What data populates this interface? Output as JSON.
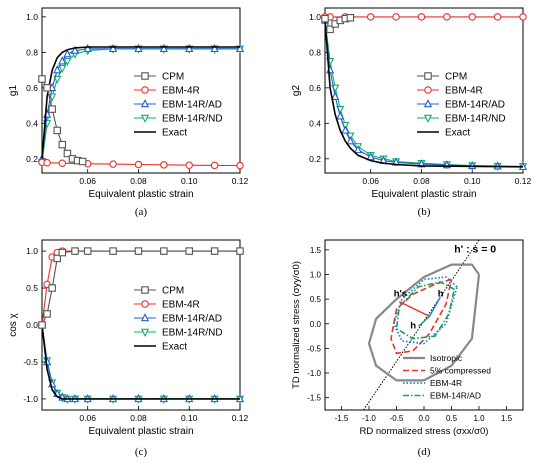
{
  "colors": {
    "CPM": "#555555",
    "EBM-4R": "#e8322b",
    "EBM-14R/AD": "#1f5fd6",
    "EBM-14R/ND": "#13b06a",
    "Exact": "#000000",
    "isotropic": "#888888",
    "compressed": "#e8322b",
    "ebm4r": "#1a7fd8",
    "ebm14rad": "#13a060"
  },
  "chart_data": [
    {
      "id": "a",
      "type": "line",
      "panel_label": "(a)",
      "xlabel": "Equivalent plastic strain",
      "ylabel": "g1",
      "xlim": [
        0.042,
        0.12
      ],
      "ylim": [
        0.12,
        1.05
      ],
      "xticks": [
        0.06,
        0.08,
        0.1,
        0.12
      ],
      "xtick_labels": [
        "0.06",
        "0.08",
        "0.10",
        "0.12"
      ],
      "yticks": [
        0.2,
        0.4,
        0.6,
        0.8,
        1.0
      ],
      "ytick_labels": [
        "0.2",
        "0.4",
        "0.6",
        "0.8",
        "1.0"
      ],
      "legend": "center-right",
      "series": [
        {
          "name": "CPM",
          "marker": "square",
          "x": [
            0.042,
            0.044,
            0.046,
            0.048,
            0.05,
            0.052,
            0.054,
            0.056,
            0.058
          ],
          "y": [
            0.65,
            0.6,
            0.48,
            0.36,
            0.28,
            0.23,
            0.2,
            0.19,
            0.185
          ]
        },
        {
          "name": "EBM-4R",
          "marker": "circle",
          "x": [
            0.042,
            0.044,
            0.05,
            0.06,
            0.07,
            0.08,
            0.09,
            0.1,
            0.11,
            0.12
          ],
          "y": [
            0.18,
            0.178,
            0.175,
            0.172,
            0.17,
            0.168,
            0.166,
            0.164,
            0.163,
            0.162
          ]
        },
        {
          "name": "EBM-14R/AD",
          "marker": "triangle-up",
          "x": [
            0.042,
            0.044,
            0.046,
            0.048,
            0.05,
            0.052,
            0.055,
            0.06,
            0.07,
            0.08,
            0.09,
            0.1,
            0.11,
            0.12
          ],
          "y": [
            0.2,
            0.45,
            0.6,
            0.7,
            0.75,
            0.79,
            0.81,
            0.82,
            0.82,
            0.82,
            0.82,
            0.82,
            0.82,
            0.82
          ]
        },
        {
          "name": "EBM-14R/ND",
          "marker": "triangle-down",
          "x": [
            0.042,
            0.044,
            0.046,
            0.048,
            0.05,
            0.052,
            0.055,
            0.06,
            0.07,
            0.08,
            0.09,
            0.1,
            0.11,
            0.12
          ],
          "y": [
            0.18,
            0.4,
            0.55,
            0.65,
            0.71,
            0.75,
            0.79,
            0.81,
            0.82,
            0.82,
            0.82,
            0.82,
            0.82,
            0.82
          ]
        },
        {
          "name": "Exact",
          "marker": "none",
          "x": [
            0.042,
            0.044,
            0.046,
            0.048,
            0.05,
            0.052,
            0.055,
            0.06,
            0.07,
            0.08,
            0.12
          ],
          "y": [
            0.2,
            0.55,
            0.7,
            0.77,
            0.8,
            0.815,
            0.825,
            0.83,
            0.83,
            0.83,
            0.83
          ]
        }
      ]
    },
    {
      "id": "b",
      "type": "line",
      "panel_label": "(b)",
      "xlabel": "Equivalent plastic strain",
      "ylabel": "g2",
      "xlim": [
        0.042,
        0.12
      ],
      "ylim": [
        0.12,
        1.05
      ],
      "xticks": [
        0.06,
        0.08,
        0.1,
        0.12
      ],
      "xtick_labels": [
        "0.06",
        "0.08",
        "0.10",
        "0.12"
      ],
      "yticks": [
        0.2,
        0.4,
        0.6,
        0.8,
        1.0
      ],
      "ytick_labels": [
        "0.2",
        "0.4",
        "0.6",
        "0.8",
        "1.0"
      ],
      "legend": "center-right",
      "series": [
        {
          "name": "CPM",
          "marker": "square",
          "x": [
            0.042,
            0.044,
            0.046,
            0.048,
            0.05,
            0.052
          ],
          "y": [
            0.99,
            0.93,
            0.96,
            0.98,
            0.99,
            0.995
          ]
        },
        {
          "name": "EBM-4R",
          "marker": "circle",
          "x": [
            0.042,
            0.044,
            0.05,
            0.06,
            0.07,
            0.08,
            0.09,
            0.1,
            0.11,
            0.12
          ],
          "y": [
            1.0,
            1.0,
            1.0,
            1.0,
            1.0,
            1.0,
            1.0,
            1.0,
            1.0,
            1.0
          ]
        },
        {
          "name": "EBM-14R/AD",
          "marker": "triangle-up",
          "x": [
            0.042,
            0.044,
            0.046,
            0.048,
            0.05,
            0.052,
            0.055,
            0.06,
            0.065,
            0.07,
            0.08,
            0.09,
            0.1,
            0.11,
            0.12
          ],
          "y": [
            0.98,
            0.7,
            0.55,
            0.44,
            0.36,
            0.3,
            0.25,
            0.21,
            0.19,
            0.18,
            0.17,
            0.165,
            0.16,
            0.158,
            0.155
          ]
        },
        {
          "name": "EBM-14R/ND",
          "marker": "triangle-down",
          "x": [
            0.042,
            0.044,
            0.046,
            0.048,
            0.05,
            0.052,
            0.055,
            0.06,
            0.065,
            0.07,
            0.08,
            0.09,
            0.1,
            0.11,
            0.12
          ],
          "y": [
            0.98,
            0.75,
            0.6,
            0.48,
            0.39,
            0.33,
            0.27,
            0.22,
            0.2,
            0.185,
            0.175,
            0.168,
            0.162,
            0.159,
            0.157
          ]
        },
        {
          "name": "Exact",
          "marker": "none",
          "x": [
            0.042,
            0.044,
            0.046,
            0.048,
            0.05,
            0.052,
            0.055,
            0.06,
            0.065,
            0.07,
            0.08,
            0.12
          ],
          "y": [
            0.98,
            0.6,
            0.45,
            0.36,
            0.3,
            0.26,
            0.22,
            0.19,
            0.175,
            0.168,
            0.16,
            0.155
          ]
        }
      ]
    },
    {
      "id": "c",
      "type": "line",
      "panel_label": "(c)",
      "xlabel": "Equivalent plastic strain",
      "ylabel": "cos χ",
      "xlim": [
        0.042,
        0.12
      ],
      "ylim": [
        -1.15,
        1.15
      ],
      "xticks": [
        0.06,
        0.08,
        0.1,
        0.12
      ],
      "xtick_labels": [
        "0.06",
        "0.08",
        "0.10",
        "0.12"
      ],
      "yticks": [
        -1.0,
        -0.5,
        0.0,
        0.5,
        1.0
      ],
      "ytick_labels": [
        "-1.0",
        "-0.5",
        "0.0",
        "0.5",
        "1.0"
      ],
      "legend": "center-right",
      "series": [
        {
          "name": "CPM",
          "marker": "square",
          "x": [
            0.042,
            0.044,
            0.046,
            0.048,
            0.05,
            0.055,
            0.06,
            0.07,
            0.08,
            0.09,
            0.1,
            0.11,
            0.12
          ],
          "y": [
            0.0,
            0.15,
            0.5,
            0.9,
            0.98,
            1.0,
            1.0,
            1.0,
            1.0,
            1.0,
            1.0,
            1.0,
            1.0
          ]
        },
        {
          "name": "EBM-4R",
          "marker": "circle",
          "x": [
            0.042,
            0.044,
            0.046,
            0.048,
            0.05,
            0.055,
            0.06,
            0.07,
            0.08,
            0.09,
            0.1,
            0.11,
            0.12
          ],
          "y": [
            0.0,
            0.55,
            0.92,
            0.98,
            1.0,
            1.0,
            1.0,
            1.0,
            1.0,
            1.0,
            1.0,
            1.0,
            1.0
          ]
        },
        {
          "name": "EBM-14R/AD",
          "marker": "triangle-up",
          "x": [
            0.042,
            0.044,
            0.046,
            0.048,
            0.05,
            0.052,
            0.055,
            0.06,
            0.07,
            0.08,
            0.09,
            0.1,
            0.11,
            0.12
          ],
          "y": [
            0.0,
            -0.5,
            -0.8,
            -0.93,
            -0.98,
            -1.0,
            -1.0,
            -1.0,
            -1.0,
            -1.0,
            -1.0,
            -1.0,
            -1.0,
            -1.0
          ]
        },
        {
          "name": "EBM-14R/ND",
          "marker": "triangle-down",
          "x": [
            0.042,
            0.044,
            0.046,
            0.048,
            0.05,
            0.052,
            0.055,
            0.06,
            0.07,
            0.08,
            0.09,
            0.1,
            0.11,
            0.12
          ],
          "y": [
            0.0,
            -0.48,
            -0.78,
            -0.92,
            -0.98,
            -1.0,
            -1.0,
            -1.0,
            -1.0,
            -1.0,
            -1.0,
            -1.0,
            -1.0,
            -1.0
          ]
        },
        {
          "name": "Exact",
          "marker": "none",
          "x": [
            0.042,
            0.044,
            0.046,
            0.048,
            0.05,
            0.055,
            0.06,
            0.12
          ],
          "y": [
            0.0,
            -0.6,
            -0.88,
            -0.97,
            -1.0,
            -1.0,
            -1.0,
            -1.0
          ]
        }
      ]
    },
    {
      "id": "d",
      "type": "line",
      "panel_label": "(d)",
      "xlabel": "RD normalized stress (σxx/σ0)",
      "ylabel": "TD normalized stress (σyy/σ0)",
      "xlim": [
        -1.8,
        1.8
      ],
      "ylim": [
        -1.75,
        1.7
      ],
      "xticks": [
        -1.5,
        -1.0,
        -0.5,
        0.0,
        0.5,
        1.0,
        1.5
      ],
      "xtick_labels": [
        "-1.5",
        "-1.0",
        "-0.5",
        "0.0",
        "0.5",
        "1.0",
        "1.5"
      ],
      "yticks": [
        -1.5,
        -1.0,
        -0.5,
        0.0,
        0.5,
        1.0,
        1.5
      ],
      "ytick_labels": [
        "-1.5",
        "-1.0",
        "-0.5",
        "0.0",
        "0.5",
        "1.0",
        "1.5"
      ],
      "legend": "bottom-right",
      "annotation": "h' : s = 0",
      "vector_labels": [
        "h's",
        "h",
        "h"
      ],
      "series": [
        {
          "name": "Isotropic",
          "style": "solid",
          "x": [
            1.0,
            0.87,
            0.5,
            0.0,
            -0.5,
            -0.87,
            -1.0,
            -0.87,
            -0.5,
            0.0,
            0.5,
            0.87,
            1.0
          ],
          "y": [
            1.0,
            1.2,
            1.2,
            0.95,
            0.5,
            0.1,
            -0.4,
            -0.85,
            -1.15,
            -1.15,
            -0.85,
            -0.3,
            1.0
          ]
        },
        {
          "name": "5% compressed",
          "style": "dashed",
          "x": [
            0.5,
            0.2,
            -0.2,
            -0.5,
            -0.6,
            -0.5,
            -0.2,
            0.1,
            0.4,
            0.5
          ],
          "y": [
            0.9,
            0.8,
            0.6,
            0.3,
            -0.3,
            -0.6,
            -0.55,
            -0.2,
            0.4,
            0.9
          ]
        },
        {
          "name": "EBM-4R",
          "style": "dotted",
          "x": [
            0.6,
            0.4,
            0.0,
            -0.4,
            -0.55,
            -0.4,
            0.0,
            0.4,
            0.6
          ],
          "y": [
            0.75,
            0.95,
            0.9,
            0.5,
            0.0,
            -0.35,
            -0.4,
            0.0,
            0.75
          ]
        },
        {
          "name": "EBM-14R/AD",
          "style": "dashdot",
          "x": [
            0.55,
            0.3,
            -0.1,
            -0.45,
            -0.5,
            -0.2,
            0.2,
            0.45,
            0.55
          ],
          "y": [
            0.7,
            0.85,
            0.75,
            0.35,
            -0.1,
            -0.3,
            -0.25,
            0.2,
            0.7
          ]
        }
      ]
    }
  ]
}
